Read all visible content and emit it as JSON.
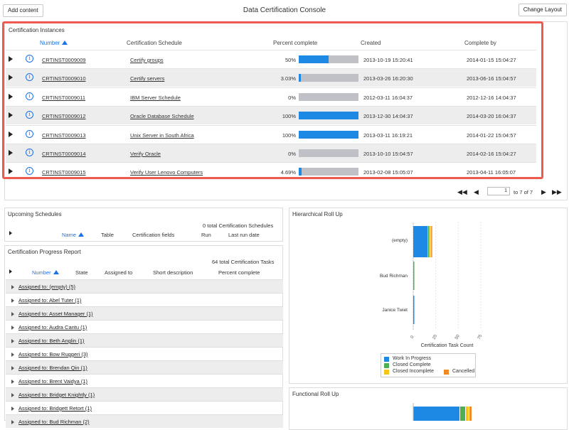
{
  "header": {
    "title": "Data Certification Console",
    "add_content": "Add content",
    "change_layout": "Change Layout"
  },
  "instances": {
    "title": "Certification Instances",
    "columns": {
      "number": "Number",
      "schedule": "Certification Schedule",
      "percent": "Percent complete",
      "created": "Created",
      "complete_by": "Complete by"
    },
    "rows": [
      {
        "number": "CRTINST0009009",
        "schedule": "Certify groups",
        "pct_label": "50%",
        "pct": 50,
        "created": "2013-10-19 15:20:41",
        "complete_by": "2014-01-15 15:04:27"
      },
      {
        "number": "CRTINST0009010",
        "schedule": "Certify servers",
        "pct_label": "3.03%",
        "pct": 3.03,
        "created": "2013-03-26 16:20:30",
        "complete_by": "2013-06-16 15:04:57"
      },
      {
        "number": "CRTINST0009011",
        "schedule": "IBM Server Schedule",
        "pct_label": "0%",
        "pct": 0,
        "created": "2012-03-11 16:04:37",
        "complete_by": "2012-12-16 14:04:37"
      },
      {
        "number": "CRTINST0009012",
        "schedule": "Oracle Database Schedule",
        "pct_label": "100%",
        "pct": 100,
        "created": "2013-12-30 14:04:37",
        "complete_by": "2014-03-20 16:04:37"
      },
      {
        "number": "CRTINST0009013",
        "schedule": "Unix Server in South Africa",
        "pct_label": "100%",
        "pct": 100,
        "created": "2013-03-11 16:19:21",
        "complete_by": "2014-01-22 15:04:57"
      },
      {
        "number": "CRTINST0009014",
        "schedule": "Verify Oracle",
        "pct_label": "0%",
        "pct": 0,
        "created": "2013-10-10 15:04:57",
        "complete_by": "2014-02-16 15:04:27"
      },
      {
        "number": "CRTINST0009015",
        "schedule": "Verify User Lenovo Computers",
        "pct_label": "4.69%",
        "pct": 4.69,
        "created": "2013-02-08 15:05:07",
        "complete_by": "2013-04-11 16:05:07"
      }
    ],
    "pager": {
      "page": "1",
      "of": "to 7 of 7"
    }
  },
  "upcoming": {
    "title": "Upcoming Schedules",
    "total": "0  total Certification Schedules",
    "columns": {
      "name": "Name",
      "table": "Table",
      "fields": "Certification fields",
      "run": "Run",
      "last_run": "Last run date"
    }
  },
  "progress": {
    "title": "Certification Progress Report",
    "total": "64  total Certification Tasks",
    "columns": {
      "number": "Number",
      "state": "State",
      "assigned": "Assigned to",
      "short": "Short description",
      "percent": "Percent complete"
    },
    "groups": [
      "Assigned to: (empty) (5)",
      "Assigned to: Abel Tuter (1)",
      "Assigned to: Asset Manager (1)",
      "Assigned to: Audra Cantu (1)",
      "Assigned to: Beth Anglin (1)",
      "Assigned to: Bow Ruggeri (3)",
      "Assigned to: Brendan Qin (1)",
      "Assigned to: Brent Vaidya (1)",
      "Assigned to: Bridget Knightly (1)",
      "Assigned to: Bridgett Retort (1)",
      "Assigned to: Bud Richman (2)"
    ]
  },
  "hier": {
    "title": "Hierarchical Roll Up"
  },
  "func": {
    "title": "Functional Roll Up"
  },
  "chart_data": [
    {
      "type": "bar",
      "orientation": "horizontal",
      "stacked": true,
      "categories": [
        "(empty)",
        "Bud Richman",
        "Janice Twiet"
      ],
      "series": [
        {
          "name": "Work In Progress",
          "color": "#1e88e5",
          "values": [
            16,
            0,
            0.3
          ]
        },
        {
          "name": "Closed Complete",
          "color": "#4caf50",
          "values": [
            1.5,
            1,
            0
          ]
        },
        {
          "name": "Closed Incomplete",
          "color": "#f5c518",
          "values": [
            1,
            0,
            0
          ]
        },
        {
          "name": "Cancelled",
          "color": "#f08a24",
          "values": [
            0.5,
            0,
            0
          ]
        }
      ],
      "x_ticks": [
        "0",
        "25",
        "50",
        "75"
      ],
      "xlabel": "Certification Task Count",
      "legend": "bottom"
    }
  ]
}
